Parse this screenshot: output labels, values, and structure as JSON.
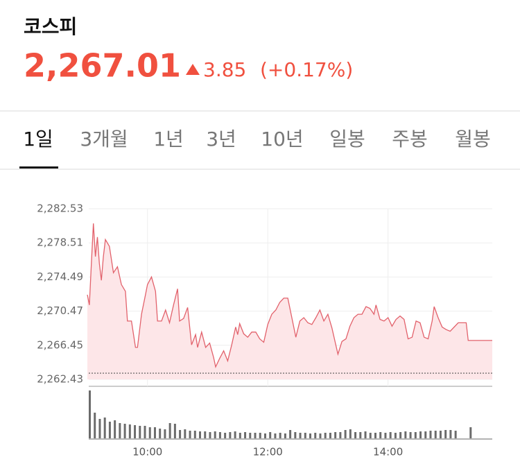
{
  "header": {
    "title": "코스피",
    "price": "2,267.01",
    "change": "3.85",
    "change_pct": "(+0.17%)"
  },
  "tabs": [
    "1일",
    "3개월",
    "1년",
    "3년",
    "10년",
    "일봉",
    "주봉",
    "월봉"
  ],
  "active_tab": 0,
  "chart_data": [
    {
      "type": "line",
      "x": [
        "09:00",
        "09:02",
        "09:04",
        "09:06",
        "09:08",
        "09:10",
        "09:12",
        "09:14",
        "09:16",
        "09:18",
        "09:22",
        "09:26",
        "09:30",
        "09:34",
        "09:38",
        "09:40",
        "09:44",
        "09:48",
        "09:50",
        "09:54",
        "09:58",
        "10:00",
        "10:04",
        "10:08",
        "10:10",
        "10:14",
        "10:18",
        "10:22",
        "10:26",
        "10:30",
        "10:32",
        "10:36",
        "10:40",
        "10:44",
        "10:48",
        "10:50",
        "10:54",
        "10:58",
        "11:02",
        "11:06",
        "11:08",
        "11:12",
        "11:16",
        "11:20",
        "11:24",
        "11:28",
        "11:30",
        "11:32",
        "11:36",
        "11:40",
        "11:44",
        "11:48",
        "11:52",
        "11:56",
        "12:00",
        "12:04",
        "12:08",
        "12:12",
        "12:16",
        "12:20",
        "12:24",
        "12:28",
        "12:32",
        "12:36",
        "12:40",
        "12:44",
        "12:48",
        "12:52",
        "12:56",
        "13:00",
        "13:04",
        "13:10",
        "13:14",
        "13:18",
        "13:22",
        "13:26",
        "13:30",
        "13:34",
        "13:38",
        "13:42",
        "13:46",
        "13:48",
        "13:52",
        "13:56",
        "14:00",
        "14:04",
        "14:08",
        "14:12",
        "14:16",
        "14:20",
        "14:24",
        "14:28",
        "14:32",
        "14:36",
        "14:40",
        "14:44",
        "14:46",
        "14:50",
        "14:54",
        "14:58",
        "15:02",
        "15:06",
        "15:10",
        "15:14",
        "15:18",
        "15:20",
        "15:44"
      ],
      "values": [
        2272.4,
        2271.2,
        2276.1,
        2280.8,
        2276.9,
        2279.2,
        2276.1,
        2274.1,
        2276.9,
        2278.9,
        2278.1,
        2275.0,
        2275.7,
        2273.6,
        2272.8,
        2269.3,
        2269.3,
        2266.2,
        2266.2,
        2270.1,
        2272.4,
        2273.6,
        2274.5,
        2272.8,
        2269.3,
        2269.3,
        2270.6,
        2269.1,
        2271.2,
        2273.1,
        2269.3,
        2269.6,
        2270.9,
        2266.5,
        2267.7,
        2266.2,
        2268.0,
        2266.2,
        2266.7,
        2265.0,
        2263.9,
        2264.9,
        2265.8,
        2264.6,
        2266.5,
        2268.6,
        2267.7,
        2269.0,
        2267.8,
        2267.4,
        2268.0,
        2268.0,
        2267.2,
        2266.8,
        2268.9,
        2270.1,
        2270.6,
        2271.5,
        2272.0,
        2272.0,
        2269.7,
        2267.4,
        2269.3,
        2269.7,
        2269.1,
        2268.9,
        2269.7,
        2270.6,
        2269.3,
        2270.1,
        2268.5,
        2265.4,
        2266.9,
        2267.2,
        2268.7,
        2269.7,
        2270.1,
        2270.1,
        2271.0,
        2270.8,
        2270.1,
        2271.2,
        2269.5,
        2269.3,
        2269.7,
        2268.7,
        2269.5,
        2269.9,
        2269.5,
        2267.2,
        2267.4,
        2269.3,
        2269.1,
        2267.4,
        2267.2,
        2269.3,
        2271.0,
        2269.7,
        2268.6,
        2268.3,
        2268.1,
        2268.6,
        2269.1,
        2269.1,
        2269.1,
        2267.01,
        2267.01
      ],
      "color": "#e2616b",
      "fill": "#fde6e8",
      "xlim": [
        "09:00",
        "15:44"
      ],
      "xticks": [
        "10:00",
        "12:00",
        "14:00"
      ],
      "ylim": [
        2262.43,
        2282.53
      ],
      "yticks": [
        {
          "value": 2262.43,
          "label": "2,262.43"
        },
        {
          "value": 2266.45,
          "label": "2,266.45"
        },
        {
          "value": 2270.47,
          "label": "2,270.47"
        },
        {
          "value": 2274.49,
          "label": "2,274.49"
        },
        {
          "value": 2278.51,
          "label": "2,278.51"
        },
        {
          "value": 2282.53,
          "label": "2,282.53"
        }
      ],
      "baseline": 2263.16,
      "grid": true
    },
    {
      "type": "bar",
      "x": [
        "09:00",
        "09:05",
        "09:10",
        "09:15",
        "09:20",
        "09:25",
        "09:30",
        "09:35",
        "09:40",
        "09:45",
        "09:50",
        "09:55",
        "10:00",
        "10:05",
        "10:10",
        "10:15",
        "10:20",
        "10:25",
        "10:30",
        "10:35",
        "10:40",
        "10:45",
        "10:50",
        "10:55",
        "11:00",
        "11:05",
        "11:10",
        "11:15",
        "11:20",
        "11:25",
        "11:30",
        "11:35",
        "11:40",
        "11:45",
        "11:50",
        "11:55",
        "12:00",
        "12:05",
        "12:10",
        "12:15",
        "12:20",
        "12:25",
        "12:30",
        "12:35",
        "12:40",
        "12:45",
        "12:50",
        "12:55",
        "13:00",
        "13:05",
        "13:10",
        "13:15",
        "13:20",
        "13:25",
        "13:30",
        "13:35",
        "13:40",
        "13:45",
        "13:50",
        "13:55",
        "14:00",
        "14:05",
        "14:10",
        "14:15",
        "14:20",
        "14:25",
        "14:30",
        "14:35",
        "14:40",
        "14:45",
        "14:50",
        "14:55",
        "15:00",
        "15:05",
        "15:20"
      ],
      "values": [
        69,
        37,
        28,
        30,
        24,
        26,
        22,
        21,
        20,
        19,
        18,
        18,
        16,
        16,
        14,
        13,
        22,
        21,
        12,
        13,
        11,
        11,
        10,
        10,
        9,
        10,
        9,
        8,
        9,
        10,
        8,
        9,
        8,
        8,
        8,
        7,
        9,
        7,
        8,
        7,
        12,
        9,
        8,
        8,
        7,
        8,
        7,
        8,
        8,
        9,
        9,
        12,
        13,
        9,
        9,
        10,
        8,
        8,
        9,
        8,
        9,
        8,
        9,
        10,
        9,
        9,
        10,
        10,
        11,
        11,
        11,
        12,
        12,
        11,
        16
      ],
      "color": "#6b6b6b",
      "xlim": [
        "09:00",
        "15:44"
      ]
    }
  ]
}
